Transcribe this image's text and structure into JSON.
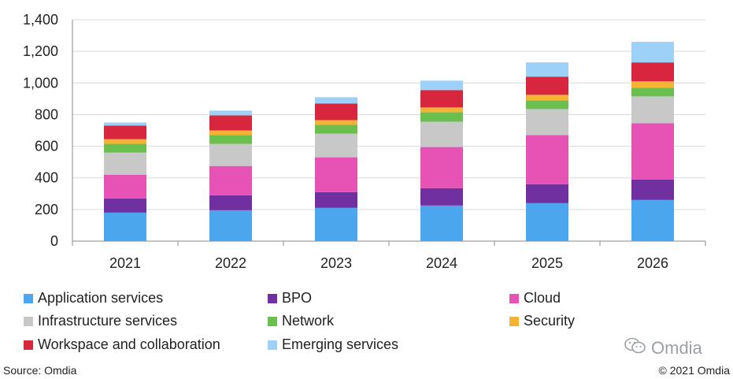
{
  "chart_data": {
    "type": "bar",
    "stacked": true,
    "categories": [
      "2021",
      "2022",
      "2023",
      "2024",
      "2025",
      "2026"
    ],
    "ylim": [
      0,
      1400
    ],
    "yticks": [
      "0",
      "200",
      "400",
      "600",
      "800",
      "1,000",
      "1,200",
      "1,400"
    ],
    "ytick_values": [
      0,
      200,
      400,
      600,
      800,
      1000,
      1200,
      1400
    ],
    "grid": true,
    "legend_position": "bottom",
    "series": [
      {
        "name": "Application services",
        "color": "#4BA6EE",
        "values": [
          180,
          195,
          210,
          225,
          240,
          260
        ]
      },
      {
        "name": "BPO",
        "color": "#7030A0",
        "values": [
          90,
          95,
          100,
          110,
          120,
          130
        ]
      },
      {
        "name": "Cloud",
        "color": "#E653B4",
        "values": [
          150,
          185,
          220,
          260,
          310,
          355
        ]
      },
      {
        "name": "Infrastructure services",
        "color": "#C8C8C8",
        "values": [
          140,
          140,
          150,
          160,
          165,
          170
        ]
      },
      {
        "name": "Network",
        "color": "#6BBF4E",
        "values": [
          55,
          55,
          55,
          60,
          55,
          55
        ]
      },
      {
        "name": "Security",
        "color": "#F5B335",
        "values": [
          30,
          30,
          30,
          30,
          35,
          40
        ]
      },
      {
        "name": "Workspace and collaboration",
        "color": "#D7263D",
        "values": [
          85,
          95,
          105,
          110,
          115,
          120
        ]
      },
      {
        "name": "Emerging services",
        "color": "#9DD1F7",
        "values": [
          20,
          30,
          40,
          60,
          90,
          130
        ]
      }
    ]
  },
  "footer": {
    "source": "Source: Omdia",
    "copyright": "© 2021 Omdia"
  },
  "watermark": {
    "text": "Omdia",
    "icon": "wechat-icon"
  }
}
